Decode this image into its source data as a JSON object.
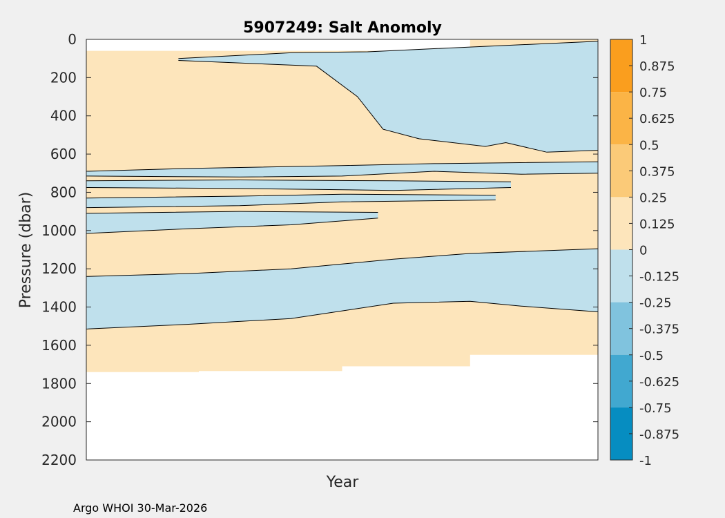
{
  "chart_data": {
    "type": "contour",
    "title": "5907249: Salt Anomoly",
    "xlabel": "Year",
    "ylabel": "Pressure (dbar)",
    "ylim": [
      0,
      2200
    ],
    "y_reversed": true,
    "yticks": [
      "0",
      "200",
      "400",
      "600",
      "800",
      "1000",
      "1200",
      "1400",
      "1600",
      "1800",
      "2000",
      "2200"
    ],
    "xticks": [],
    "colorbar": {
      "range": [
        -1,
        1
      ],
      "ticks": [
        "1",
        "0.875",
        "0.75",
        "0.625",
        "0.5",
        "0.375",
        "0.25",
        "0.125",
        "0",
        "-0.125",
        "-0.25",
        "-0.375",
        "-0.5",
        "-0.625",
        "-0.75",
        "-0.875",
        "-1"
      ],
      "bands": [
        {
          "from": 0.75,
          "to": 1,
          "color": "#fa9e1e"
        },
        {
          "from": 0.5,
          "to": 0.75,
          "color": "#fbb446"
        },
        {
          "from": 0.25,
          "to": 0.5,
          "color": "#fbca78"
        },
        {
          "from": 0,
          "to": 0.25,
          "color": "#fde5bb"
        },
        {
          "from": -0.25,
          "to": 0,
          "color": "#bfe0ec"
        },
        {
          "from": -0.5,
          "to": -0.25,
          "color": "#80c3de"
        },
        {
          "from": -0.75,
          "to": -0.5,
          "color": "#41a8d0"
        },
        {
          "from": -1,
          "to": -0.75,
          "color": "#068dc1"
        }
      ]
    },
    "data_extent": {
      "top_dbar": [
        {
          "from": 0,
          "to": 0.75,
          "value": 60
        },
        {
          "from": 0.75,
          "to": 1,
          "value": 0
        }
      ],
      "bottom_dbar": [
        {
          "from": 0,
          "to": 0.22,
          "value": 1740
        },
        {
          "from": 0.22,
          "to": 0.5,
          "value": 1735
        },
        {
          "from": 0.5,
          "to": 0.75,
          "value": 1710
        },
        {
          "from": 0.75,
          "to": 1,
          "value": 1650
        }
      ]
    },
    "regions": [
      {
        "name": "upper-freshening",
        "anomaly": -0.1,
        "left": [
          [
            0.18,
            100
          ],
          [
            0.4,
            70
          ],
          [
            0.55,
            65
          ],
          [
            0.75,
            40
          ],
          [
            1.0,
            10
          ]
        ],
        "right": [
          [
            0.18,
            110
          ],
          [
            0.45,
            140
          ],
          [
            0.53,
            300
          ],
          [
            0.58,
            470
          ],
          [
            0.65,
            520
          ],
          [
            0.78,
            560
          ],
          [
            0.82,
            540
          ],
          [
            0.9,
            590
          ],
          [
            1.0,
            580
          ]
        ]
      },
      {
        "name": "band-670",
        "anomaly": -0.1,
        "left": [
          [
            0,
            690
          ],
          [
            0.2,
            675
          ],
          [
            0.5,
            660
          ],
          [
            0.68,
            650
          ],
          [
            1.0,
            640
          ]
        ],
        "right": [
          [
            0,
            715
          ],
          [
            0.3,
            720
          ],
          [
            0.5,
            715
          ],
          [
            0.68,
            690
          ],
          [
            0.85,
            705
          ],
          [
            1.0,
            700
          ]
        ]
      },
      {
        "name": "band-760",
        "anomaly": -0.1,
        "left": [
          [
            0,
            740
          ],
          [
            0.3,
            735
          ],
          [
            0.6,
            740
          ],
          [
            0.83,
            745
          ]
        ],
        "right": [
          [
            0,
            775
          ],
          [
            0.3,
            780
          ],
          [
            0.6,
            790
          ],
          [
            0.83,
            775
          ]
        ]
      },
      {
        "name": "band-840",
        "anomaly": -0.1,
        "left": [
          [
            0,
            830
          ],
          [
            0.3,
            820
          ],
          [
            0.5,
            810
          ],
          [
            0.8,
            815
          ]
        ],
        "right": [
          [
            0,
            880
          ],
          [
            0.3,
            870
          ],
          [
            0.5,
            850
          ],
          [
            0.8,
            840
          ]
        ]
      },
      {
        "name": "band-950",
        "anomaly": -0.1,
        "left": [
          [
            0,
            910
          ],
          [
            0.3,
            900
          ],
          [
            0.57,
            905
          ]
        ],
        "right": [
          [
            0,
            1015
          ],
          [
            0.2,
            990
          ],
          [
            0.4,
            970
          ],
          [
            0.57,
            935
          ]
        ]
      },
      {
        "name": "deep-freshening",
        "anomaly": -0.1,
        "left": [
          [
            0,
            1240
          ],
          [
            0.2,
            1225
          ],
          [
            0.4,
            1200
          ],
          [
            0.6,
            1150
          ],
          [
            0.75,
            1120
          ],
          [
            1.0,
            1095
          ]
        ],
        "right": [
          [
            0,
            1515
          ],
          [
            0.2,
            1490
          ],
          [
            0.4,
            1460
          ],
          [
            0.6,
            1380
          ],
          [
            0.75,
            1370
          ],
          [
            0.85,
            1395
          ],
          [
            1.0,
            1425
          ]
        ]
      }
    ]
  },
  "footer": "Argo WHOI 30-Mar-2026"
}
